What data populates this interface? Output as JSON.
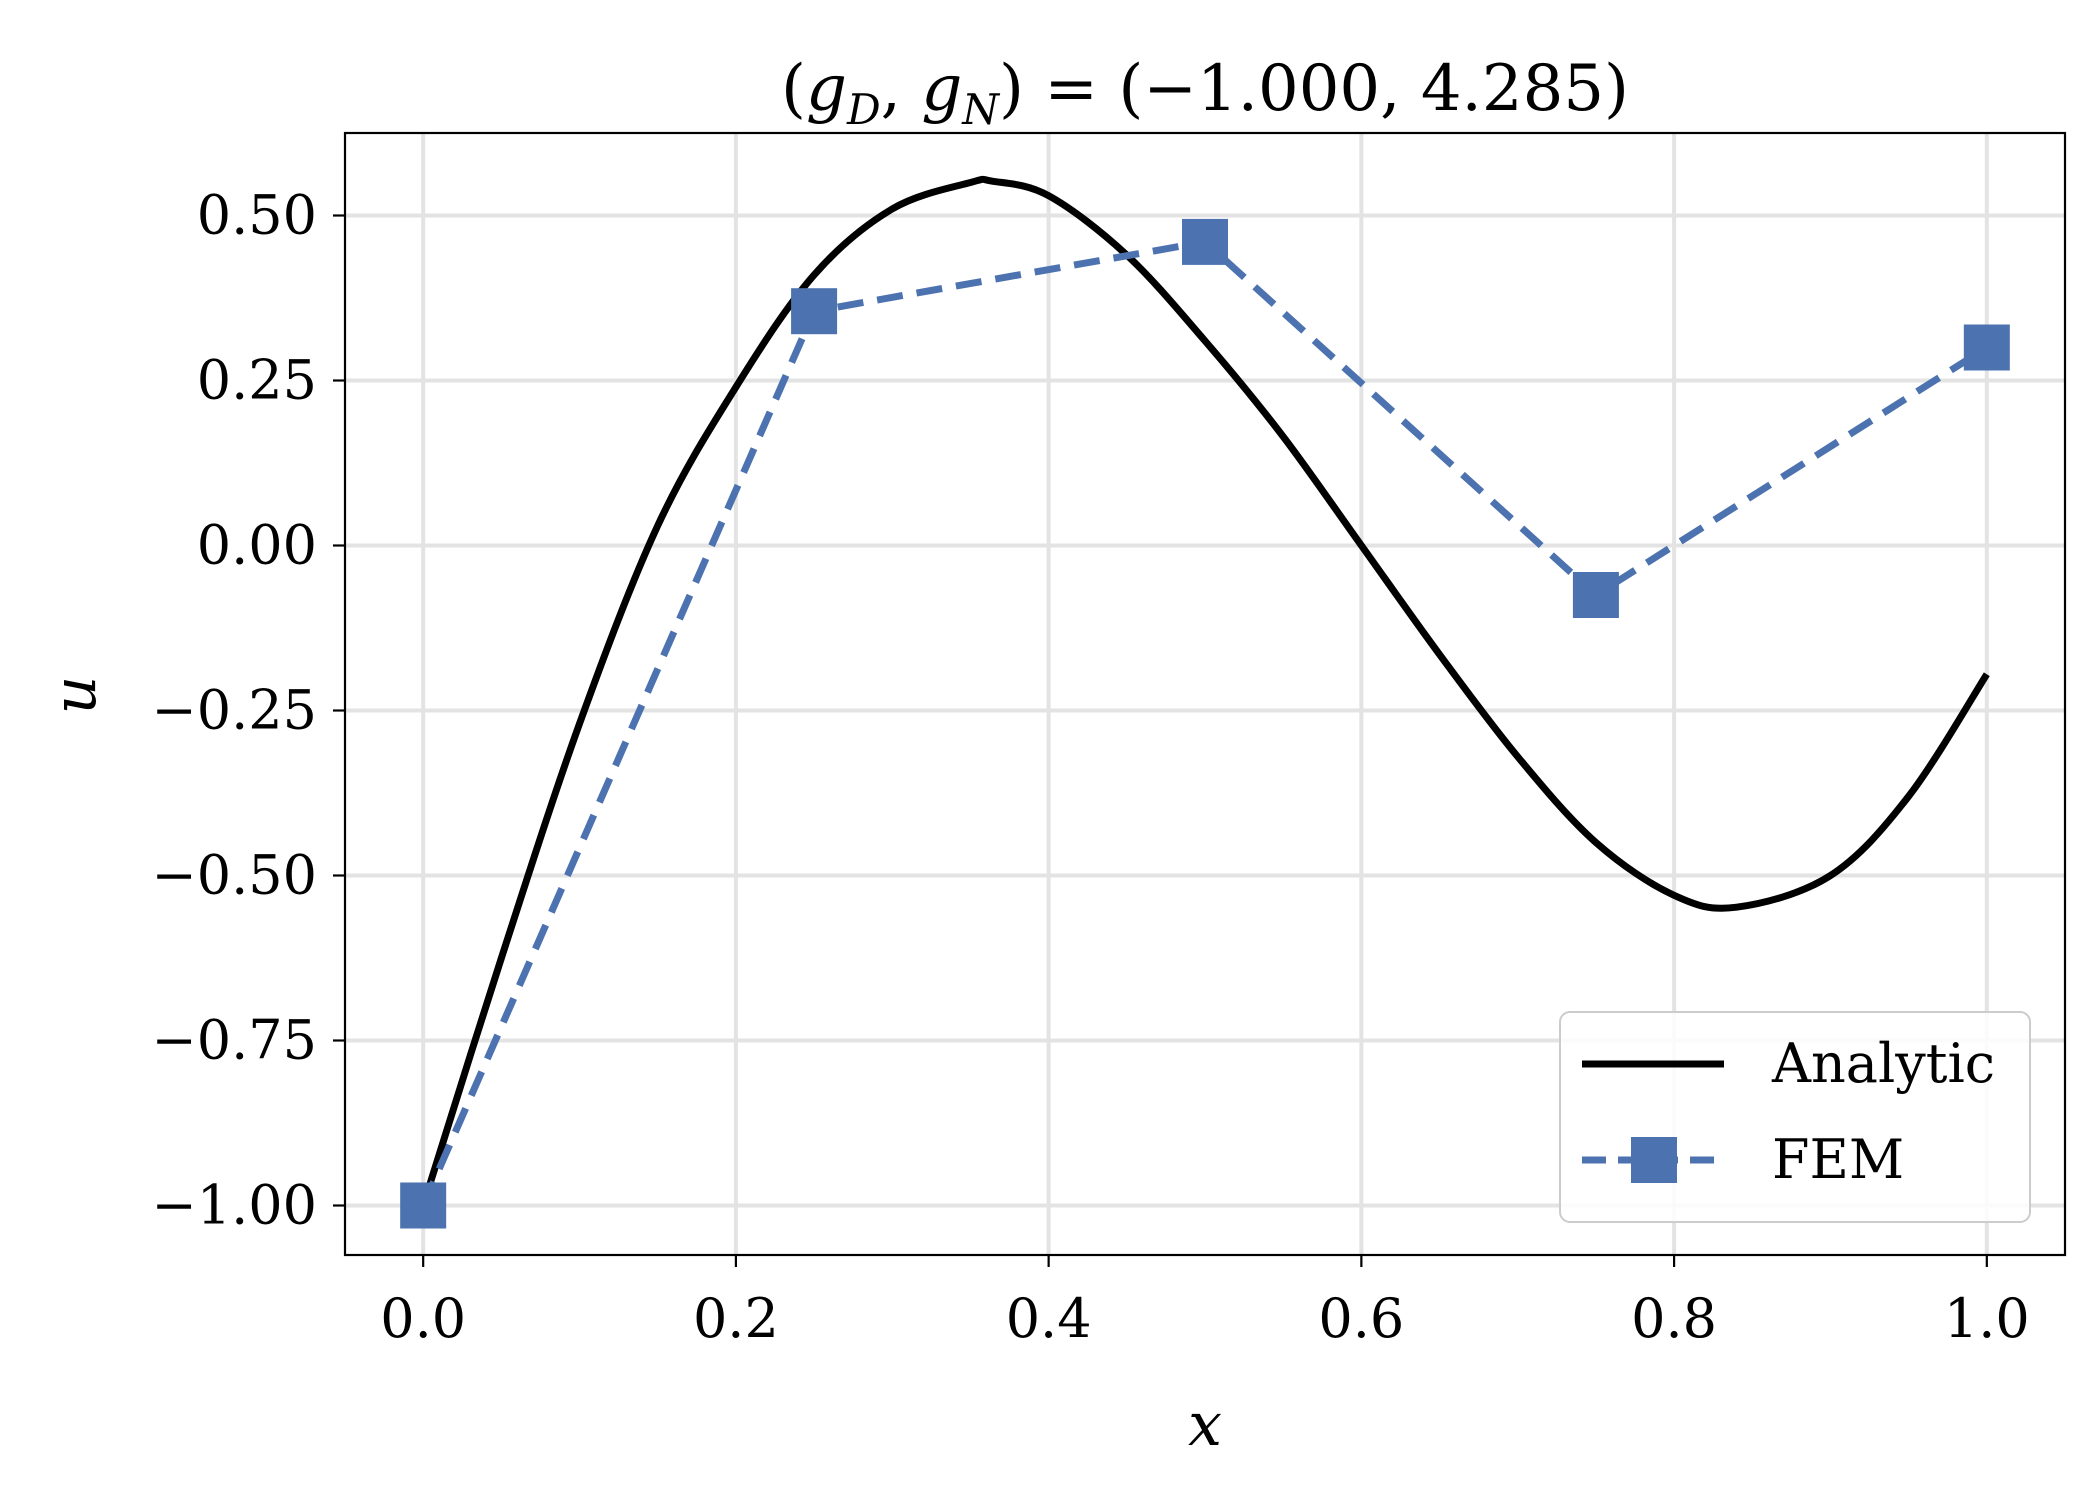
{
  "chart_data": {
    "type": "line",
    "title": "(g_D, g_N) = (−1.000, 4.285)",
    "title_parts": {
      "open": "(",
      "g1": "g",
      "sub1": "D",
      "comma": ", ",
      "g2": "g",
      "sub2": "N",
      "rest": ") = (−1.000, 4.285)"
    },
    "xlabel": "x",
    "ylabel": "u",
    "xlim": [
      -0.05,
      1.05
    ],
    "ylim": [
      -1.075,
      0.625
    ],
    "x_ticks": [
      0.0,
      0.2,
      0.4,
      0.6,
      0.8,
      1.0
    ],
    "x_tick_labels": [
      "0.0",
      "0.2",
      "0.4",
      "0.6",
      "0.8",
      "1.0"
    ],
    "y_ticks": [
      0.5,
      0.25,
      0.0,
      -0.25,
      -0.5,
      -0.75,
      -1.0
    ],
    "y_tick_labels": [
      "0.50",
      "0.25",
      "0.00",
      "−0.25",
      "−0.50",
      "−0.75",
      "−1.00"
    ],
    "grid": true,
    "legend_position": "bottom-right",
    "series": [
      {
        "name": "Analytic",
        "style": "solid",
        "color": "#000000",
        "x": [
          0.0,
          0.05,
          0.1,
          0.15,
          0.2,
          0.25,
          0.3,
          0.35,
          0.364,
          0.4,
          0.45,
          0.5,
          0.55,
          0.6,
          0.65,
          0.7,
          0.75,
          0.8,
          0.84,
          0.9,
          0.95,
          1.0
        ],
        "y": [
          -1.0,
          -0.625,
          -0.27,
          0.03,
          0.24,
          0.41,
          0.51,
          0.55,
          0.552,
          0.53,
          0.44,
          0.31,
          0.165,
          0.0,
          -0.165,
          -0.32,
          -0.45,
          -0.53,
          -0.548,
          -0.5,
          -0.38,
          -0.195
        ]
      },
      {
        "name": "FEM",
        "style": "dashed",
        "marker": "square",
        "color": "#4c72b0",
        "x": [
          0.0,
          0.25,
          0.5,
          0.75,
          1.0
        ],
        "y": [
          -1.0,
          0.355,
          0.46,
          -0.075,
          0.3
        ]
      }
    ]
  }
}
